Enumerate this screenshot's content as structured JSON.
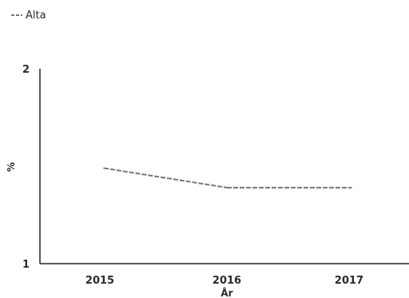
{
  "chart_data": {
    "type": "line",
    "xlabel": "År",
    "ylabel": "%",
    "x": [
      "2015",
      "2016",
      "2017"
    ],
    "ylim": [
      1,
      2
    ],
    "yticks": [
      "1",
      "2"
    ],
    "grid": false,
    "legend_position": "top-left",
    "series": [
      {
        "name": "Alta",
        "values": [
          1.49,
          1.39,
          1.39
        ],
        "color": "#777777"
      }
    ]
  }
}
